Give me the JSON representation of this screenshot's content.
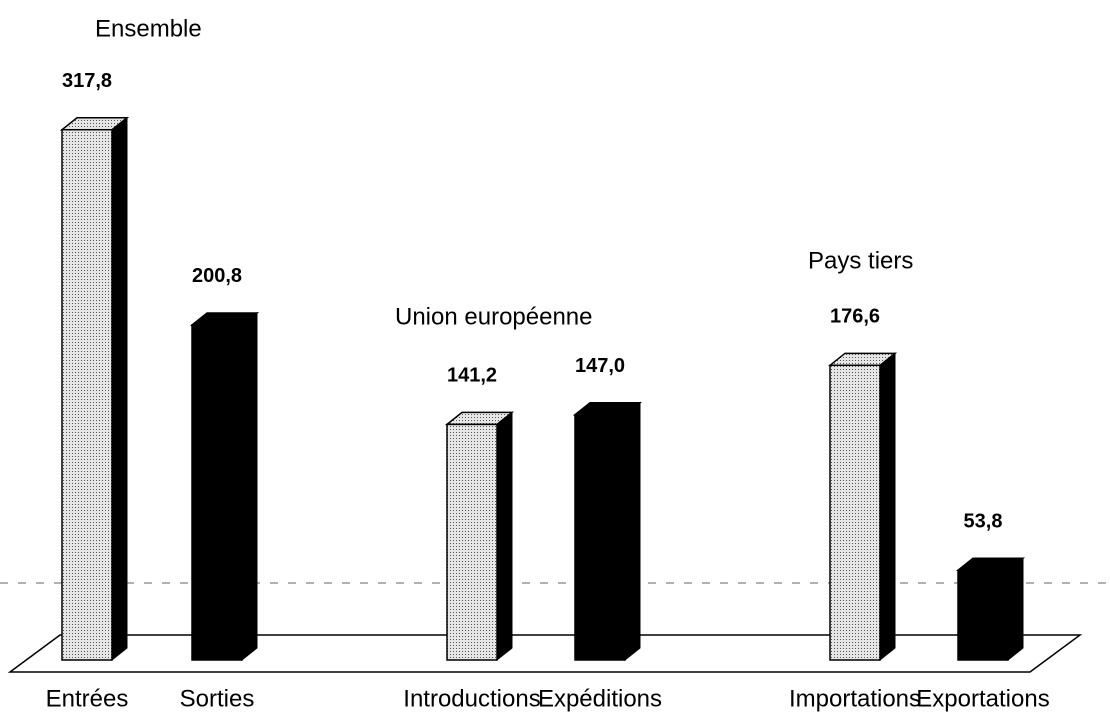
{
  "chart_data": {
    "type": "bar3d",
    "categories": [
      "Entrées",
      "Sorties",
      "Introductions",
      "Expéditions",
      "Importations",
      "Exportations"
    ],
    "values": [
      317.8,
      200.8,
      141.2,
      147.0,
      176.6,
      53.8
    ],
    "value_labels": [
      "317,8",
      "200,8",
      "141,2",
      "147,0",
      "176,6",
      "53,8"
    ],
    "colors": [
      "#c4c4c4",
      "#000000",
      "#c4c4c4",
      "#000000",
      "#c4c4c4",
      "#000000"
    ],
    "annotations": [
      "Ensemble",
      "Union européenne",
      "Pays tiers"
    ],
    "ylim": [
      0,
      350
    ]
  }
}
